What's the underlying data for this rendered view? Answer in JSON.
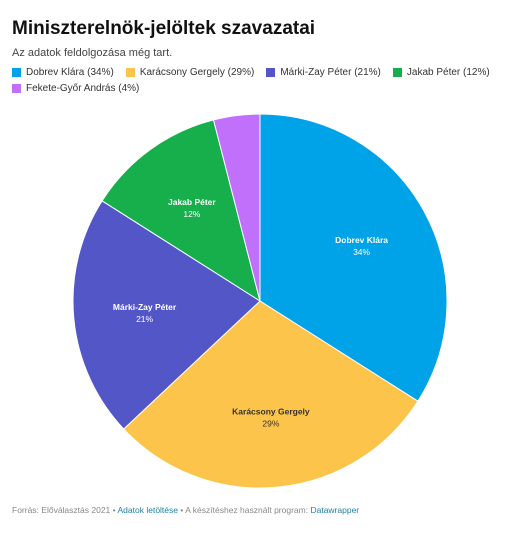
{
  "header": {
    "title": "Miniszterelnök-jelöltek szavazatai",
    "subtitle": "Az adatok feldolgozása még tart."
  },
  "chart_data": {
    "type": "pie",
    "legend_position": "top",
    "slices": [
      {
        "name": "Dobrev Klára",
        "value": 34,
        "color": "#00a2e8",
        "label_color": "#ffffff",
        "legend": "Dobrev Klára (34%)",
        "label_pct": "34%"
      },
      {
        "name": "Karácsony Gergely",
        "value": 29,
        "color": "#fcc44a",
        "label_color": "#333333",
        "legend": "Karácsony Gergely (29%)",
        "label_pct": "29%"
      },
      {
        "name": "Márki-Zay Péter",
        "value": 21,
        "color": "#5356c7",
        "label_color": "#ffffff",
        "legend": "Márki-Zay Péter (21%)",
        "label_pct": "21%"
      },
      {
        "name": "Jakab Péter",
        "value": 12,
        "color": "#17ae4c",
        "label_color": "#ffffff",
        "legend": "Jakab Péter (12%)",
        "label_pct": "12%"
      },
      {
        "name": "Fekete-Győr András",
        "value": 4,
        "color": "#c070fa",
        "label_color": "#ffffff",
        "legend": "Fekete-Győr András (4%)",
        "label_pct": ""
      }
    ]
  },
  "footer": {
    "source_text": "Forrás: Előválasztás 2021 •",
    "download_link": "Adatok letöltése",
    "tool_text": "• A készítéshez használt program:",
    "tool_link": "Datawrapper"
  }
}
